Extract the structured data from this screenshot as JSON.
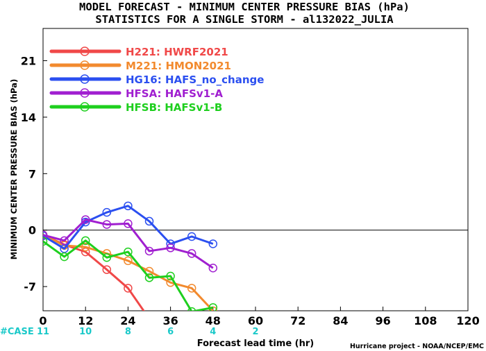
{
  "chart_data": {
    "type": "line",
    "title": "MODEL FORECAST - MINIMUM CENTER PRESSURE BIAS (hPa)",
    "subtitle": "STATISTICS FOR A SINGLE STORM - al132022_JULIA",
    "xlabel": "Forecast lead time (hr)",
    "ylabel": "MINIMUM CENTER PRESSURE BIAS (hPa)",
    "xlim": [
      0,
      120
    ],
    "ylim": [
      -10,
      25
    ],
    "xticks": [
      0,
      12,
      24,
      36,
      48,
      60,
      72,
      84,
      96,
      108,
      120
    ],
    "yticks": [
      -7,
      0,
      7,
      14,
      21
    ],
    "grid": false,
    "zero_line": true,
    "legend_position": "top-left",
    "case_label": "#CASE",
    "cases": [
      {
        "x": 0,
        "n": "11"
      },
      {
        "x": 12,
        "n": "10"
      },
      {
        "x": 24,
        "n": "8"
      },
      {
        "x": 36,
        "n": "6"
      },
      {
        "x": 48,
        "n": "4"
      },
      {
        "x": 60,
        "n": "2"
      }
    ],
    "credit": "Hurricane project - NOAA/NCEP/EMC",
    "series": [
      {
        "name": "H221:  HWRF2021",
        "color": "#f04848",
        "x": [
          0,
          6,
          12,
          18,
          24,
          30
        ],
        "y": [
          -0.6,
          -1.8,
          -2.7,
          -4.9,
          -7.2,
          -11.0
        ]
      },
      {
        "name": "M221:  HMON2021",
        "color": "#f28a2e",
        "x": [
          0,
          6,
          12,
          18,
          24,
          30,
          36,
          42,
          48
        ],
        "y": [
          -0.6,
          -1.9,
          -2.1,
          -2.9,
          -3.8,
          -5.1,
          -6.5,
          -7.2,
          -10.0
        ]
      },
      {
        "name": "HG16:  HAFS_no_change",
        "color": "#2b4ff0",
        "x": [
          0,
          6,
          12,
          18,
          24,
          30,
          36,
          42,
          48
        ],
        "y": [
          -0.7,
          -2.3,
          1.0,
          2.2,
          3.0,
          1.1,
          -1.7,
          -0.8,
          -1.7
        ]
      },
      {
        "name": "HFSA:  HAFSv1-A",
        "color": "#a01fd0",
        "x": [
          0,
          6,
          12,
          18,
          24,
          30,
          36,
          42,
          48
        ],
        "y": [
          -0.6,
          -1.3,
          1.3,
          0.7,
          0.8,
          -2.6,
          -2.2,
          -2.9,
          -4.7
        ]
      },
      {
        "name": "HFSB:  HAFSv1-B",
        "color": "#1ecf1e",
        "x": [
          0,
          6,
          12,
          18,
          24,
          30,
          36,
          42,
          48
        ],
        "y": [
          -1.4,
          -3.3,
          -1.3,
          -3.4,
          -2.7,
          -5.9,
          -5.7,
          -10.1,
          -9.6
        ]
      }
    ]
  }
}
